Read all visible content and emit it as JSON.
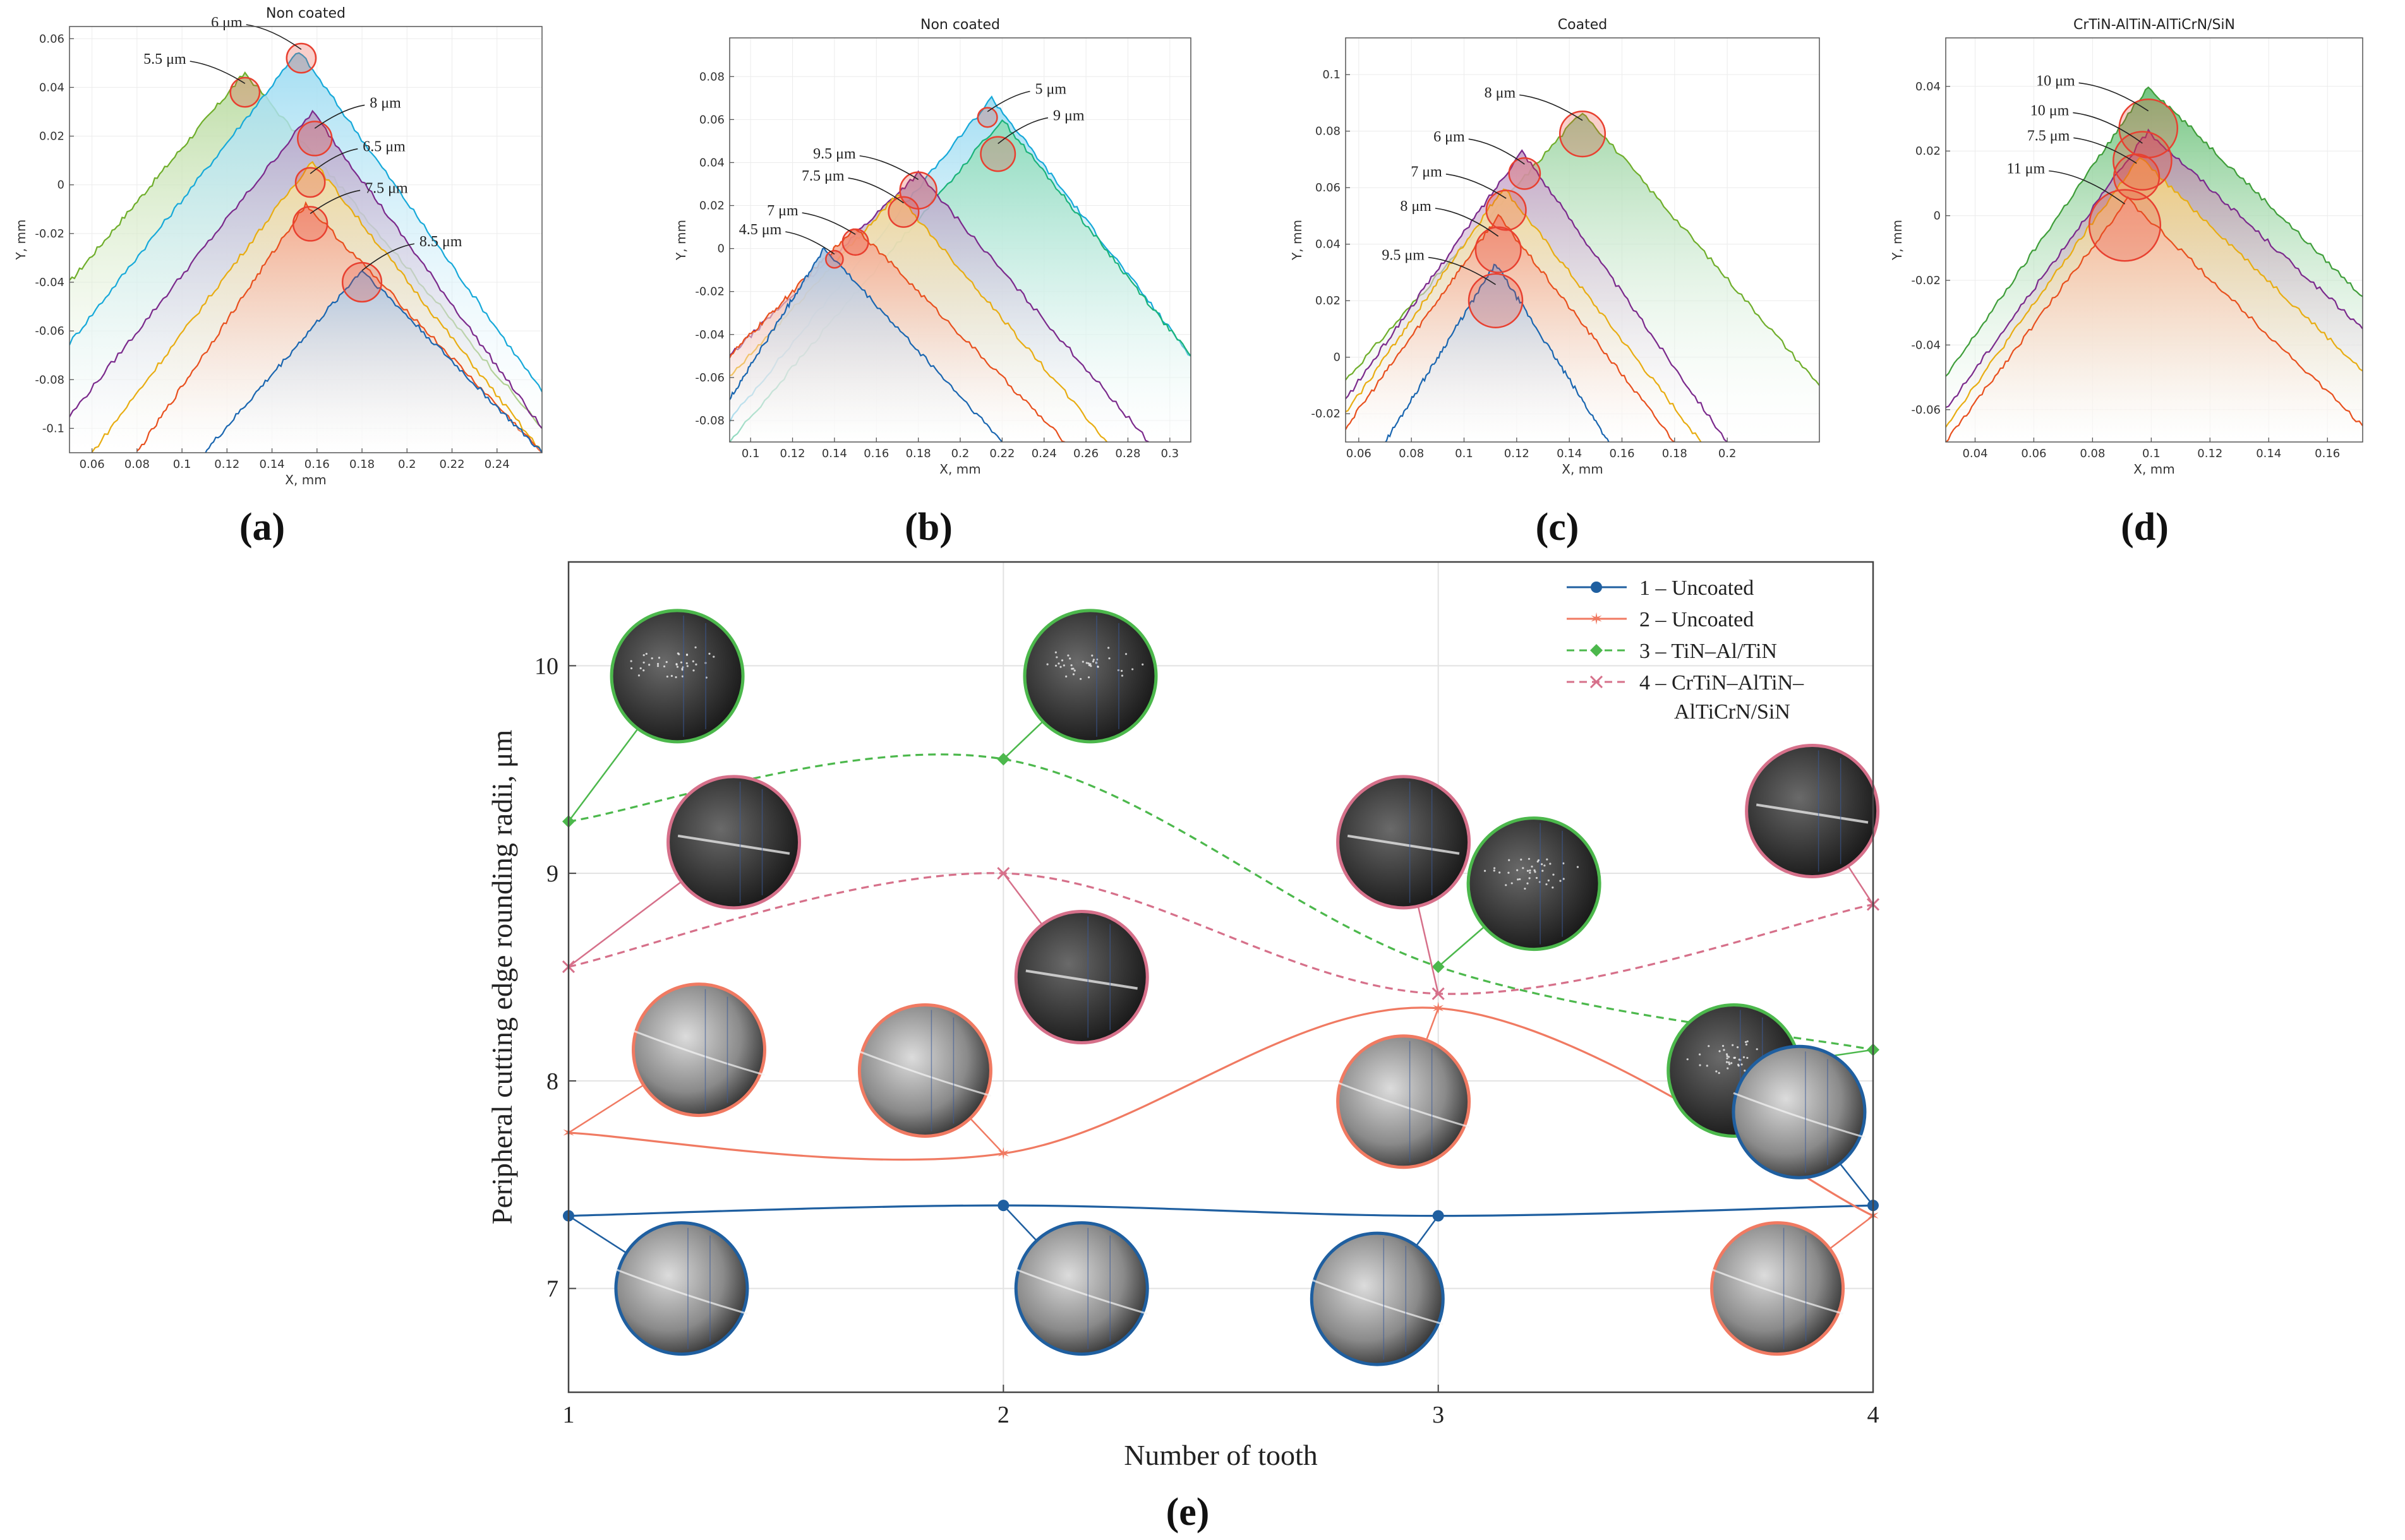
{
  "figure": {
    "labels": {
      "a": "(a)",
      "b": "(b)",
      "c": "(c)",
      "d": "(d)",
      "e": "(e)"
    }
  },
  "chart_data": [
    {
      "id": "a",
      "type": "area",
      "title": "Non coated",
      "xlabel": "X, mm",
      "ylabel": "Y, mm",
      "xlim": [
        0.05,
        0.26
      ],
      "ylim": [
        -0.11,
        0.065
      ],
      "xticks": [
        "0.06",
        "0.08",
        "0.1",
        "0.12",
        "0.14",
        "0.16",
        "0.18",
        "0.2",
        "0.22",
        "0.24"
      ],
      "xtick_values": [
        0.06,
        0.08,
        0.1,
        0.12,
        0.14,
        0.16,
        0.18,
        0.2,
        0.22,
        0.24
      ],
      "yticks": [
        "0.06",
        "0.04",
        "0.02",
        "0",
        "-0.02",
        "-0.04",
        "-0.06",
        "-0.08",
        "-0.1"
      ],
      "ytick_values": [
        0.06,
        0.04,
        0.02,
        0,
        -0.02,
        -0.04,
        -0.06,
        -0.08,
        -0.1
      ],
      "series": [
        {
          "color": "#6fae2b",
          "fill": "#b9dba0",
          "points": [
            [
              0.05,
              -0.04
            ],
            [
              0.128,
              0.046
            ],
            [
              0.26,
              -0.1
            ]
          ]
        },
        {
          "color": "#17a9d9",
          "fill": "#9edcf2",
          "points": [
            [
              0.05,
              -0.065
            ],
            [
              0.152,
              0.055
            ],
            [
              0.26,
              -0.085
            ]
          ]
        },
        {
          "color": "#7b2a8c",
          "fill": "#b7a4c9",
          "points": [
            [
              0.05,
              -0.095
            ],
            [
              0.158,
              0.03
            ],
            [
              0.26,
              -0.1
            ]
          ]
        },
        {
          "color": "#e8ad12",
          "fill": "#f2dc9a",
          "points": [
            [
              0.06,
              -0.11
            ],
            [
              0.158,
              0.01
            ],
            [
              0.26,
              -0.11
            ]
          ]
        },
        {
          "color": "#e8501e",
          "fill": "#f4a58a",
          "points": [
            [
              0.08,
              -0.11
            ],
            [
              0.155,
              -0.008
            ],
            [
              0.26,
              -0.11
            ]
          ]
        },
        {
          "color": "#1a66b0",
          "fill": "#a9c5e2",
          "points": [
            [
              0.11,
              -0.11
            ],
            [
              0.18,
              -0.035
            ],
            [
              0.26,
              -0.11
            ]
          ]
        }
      ],
      "circles": [
        {
          "text": "5.5 μm",
          "x": 0.128,
          "y": 0.038,
          "r": 0.006,
          "color": "#e84030"
        },
        {
          "text": "6 μm",
          "x": 0.153,
          "y": 0.052,
          "r": 0.006,
          "color": "#e84030"
        },
        {
          "text": "8 μm",
          "x": 0.159,
          "y": 0.019,
          "r": 0.007,
          "color": "#e84030"
        },
        {
          "text": "6.5 μm",
          "x": 0.157,
          "y": 0.001,
          "r": 0.006,
          "color": "#e84030"
        },
        {
          "text": "7.5 μm",
          "x": 0.157,
          "y": -0.016,
          "r": 0.007,
          "color": "#e84030"
        },
        {
          "text": "8.5 μm",
          "x": 0.18,
          "y": -0.04,
          "r": 0.008,
          "color": "#e84030"
        }
      ]
    },
    {
      "id": "b",
      "type": "area",
      "title": "Non coated",
      "xlabel": "X, mm",
      "ylabel": "Y, mm",
      "xlim": [
        0.09,
        0.31
      ],
      "ylim": [
        -0.09,
        0.098
      ],
      "xticks": [
        "0.1",
        "0.12",
        "0.14",
        "0.16",
        "0.18",
        "0.2",
        "0.22",
        "0.24",
        "0.26",
        "0.28",
        "0.3"
      ],
      "xtick_values": [
        0.1,
        0.12,
        0.14,
        0.16,
        0.18,
        0.2,
        0.22,
        0.24,
        0.26,
        0.28,
        0.3
      ],
      "yticks": [
        "0.08",
        "0.06",
        "0.04",
        "0.02",
        "0",
        "-0.02",
        "-0.04",
        "-0.06",
        "-0.08"
      ],
      "ytick_values": [
        0.08,
        0.06,
        0.04,
        0.02,
        0,
        -0.02,
        -0.04,
        -0.06,
        -0.08
      ],
      "series": [
        {
          "color": "#17a9d9",
          "fill": "#9edcf2",
          "points": [
            [
              0.09,
              -0.08
            ],
            [
              0.215,
              0.07
            ],
            [
              0.31,
              -0.05
            ]
          ]
        },
        {
          "color": "#1ab37a",
          "fill": "#8fdcb9",
          "points": [
            [
              0.09,
              -0.09
            ],
            [
              0.22,
              0.06
            ],
            [
              0.31,
              -0.05
            ]
          ]
        },
        {
          "color": "#7b2a8c",
          "fill": "#b7a4c9",
          "points": [
            [
              0.09,
              -0.05
            ],
            [
              0.18,
              0.035
            ],
            [
              0.29,
              -0.09
            ]
          ]
        },
        {
          "color": "#e8ad12",
          "fill": "#f2dc9a",
          "points": [
            [
              0.09,
              -0.06
            ],
            [
              0.17,
              0.025
            ],
            [
              0.27,
              -0.09
            ]
          ]
        },
        {
          "color": "#e8501e",
          "fill": "#f4a58a",
          "points": [
            [
              0.09,
              -0.05
            ],
            [
              0.15,
              0.01
            ],
            [
              0.25,
              -0.09
            ]
          ]
        },
        {
          "color": "#1a66b0",
          "fill": "#a9c5e2",
          "points": [
            [
              0.09,
              -0.07
            ],
            [
              0.135,
              0.0
            ],
            [
              0.22,
              -0.09
            ]
          ]
        }
      ],
      "circles": [
        {
          "text": "5 μm",
          "x": 0.213,
          "y": 0.061,
          "r": 0.0045,
          "color": "#e84030"
        },
        {
          "text": "9 μm",
          "x": 0.218,
          "y": 0.044,
          "r": 0.008,
          "color": "#e84030"
        },
        {
          "text": "9.5 μm",
          "x": 0.18,
          "y": 0.027,
          "r": 0.0085,
          "color": "#e84030"
        },
        {
          "text": "7.5 μm",
          "x": 0.173,
          "y": 0.017,
          "r": 0.007,
          "color": "#e84030"
        },
        {
          "text": "7 μm",
          "x": 0.15,
          "y": 0.003,
          "r": 0.006,
          "color": "#e84030"
        },
        {
          "text": "4.5 μm",
          "x": 0.14,
          "y": -0.005,
          "r": 0.004,
          "color": "#e84030"
        }
      ]
    },
    {
      "id": "c",
      "type": "area",
      "title": "Coated",
      "xlabel": "X, mm",
      "ylabel": "Y, mm",
      "xlim": [
        0.055,
        0.235
      ],
      "ylim": [
        -0.03,
        0.113
      ],
      "xticks": [
        "0.06",
        "0.08",
        "0.1",
        "0.12",
        "0.14",
        "0.16",
        "0.18",
        "0.2"
      ],
      "xtick_values": [
        0.06,
        0.08,
        0.1,
        0.12,
        0.14,
        0.16,
        0.18,
        0.2
      ],
      "yticks": [
        "0.1",
        "0.08",
        "0.06",
        "0.04",
        "0.02",
        "0",
        "-0.02"
      ],
      "ytick_values": [
        0.1,
        0.08,
        0.06,
        0.04,
        0.02,
        0,
        -0.02
      ],
      "series": [
        {
          "color": "#6fae2b",
          "fill": "#9fd6a6",
          "points": [
            [
              0.055,
              -0.008
            ],
            [
              0.145,
              0.087
            ],
            [
              0.235,
              -0.01
            ]
          ]
        },
        {
          "color": "#7b2a8c",
          "fill": "#c7a4c9",
          "points": [
            [
              0.055,
              -0.015
            ],
            [
              0.122,
              0.073
            ],
            [
              0.2,
              -0.03
            ]
          ]
        },
        {
          "color": "#e8ad12",
          "fill": "#f2dc9a",
          "points": [
            [
              0.055,
              -0.02
            ],
            [
              0.115,
              0.06
            ],
            [
              0.19,
              -0.03
            ]
          ]
        },
        {
          "color": "#e8501e",
          "fill": "#f4a58a",
          "points": [
            [
              0.055,
              -0.025
            ],
            [
              0.113,
              0.05
            ],
            [
              0.18,
              -0.03
            ]
          ]
        },
        {
          "color": "#1a66b0",
          "fill": "#a9c5e2",
          "points": [
            [
              0.07,
              -0.03
            ],
            [
              0.112,
              0.033
            ],
            [
              0.155,
              -0.03
            ]
          ]
        }
      ],
      "circles": [
        {
          "text": "8 μm",
          "x": 0.145,
          "y": 0.079,
          "r": 0.008,
          "color": "#e84030"
        },
        {
          "text": "6 μm",
          "x": 0.123,
          "y": 0.065,
          "r": 0.0055,
          "color": "#e84030"
        },
        {
          "text": "7 μm",
          "x": 0.116,
          "y": 0.052,
          "r": 0.007,
          "color": "#e84030"
        },
        {
          "text": "8 μm",
          "x": 0.113,
          "y": 0.038,
          "r": 0.008,
          "color": "#e84030"
        },
        {
          "text": "9.5 μm",
          "x": 0.112,
          "y": 0.02,
          "r": 0.0095,
          "color": "#e84030"
        }
      ]
    },
    {
      "id": "d",
      "type": "area",
      "title": "CrTiN-AlTiN-AlTiCrN/SiN",
      "xlabel": "X, mm",
      "ylabel": "Y, mm",
      "xlim": [
        0.03,
        0.172
      ],
      "ylim": [
        -0.07,
        0.055
      ],
      "xticks": [
        "0.04",
        "0.06",
        "0.08",
        "0.1",
        "0.12",
        "0.14",
        "0.16"
      ],
      "xtick_values": [
        0.04,
        0.06,
        0.08,
        0.1,
        0.12,
        0.14,
        0.16
      ],
      "yticks": [
        "0.04",
        "0.02",
        "0",
        "-0.02",
        "-0.04",
        "-0.06"
      ],
      "ytick_values": [
        0.04,
        0.02,
        0,
        -0.02,
        -0.04,
        -0.06
      ],
      "series": [
        {
          "color": "#3f9e3a",
          "fill": "#6cc27a",
          "points": [
            [
              0.03,
              -0.05
            ],
            [
              0.099,
              0.04
            ],
            [
              0.172,
              -0.025
            ]
          ]
        },
        {
          "color": "#7b2a8c",
          "fill": "#b48aa6",
          "points": [
            [
              0.03,
              -0.06
            ],
            [
              0.099,
              0.026
            ],
            [
              0.172,
              -0.035
            ]
          ]
        },
        {
          "color": "#e8ad12",
          "fill": "#f2cf7a",
          "points": [
            [
              0.03,
              -0.065
            ],
            [
              0.096,
              0.018
            ],
            [
              0.172,
              -0.048
            ]
          ]
        },
        {
          "color": "#e8501e",
          "fill": "#f6b395",
          "points": [
            [
              0.03,
              -0.07
            ],
            [
              0.092,
              0.005
            ],
            [
              0.172,
              -0.065
            ]
          ]
        }
      ],
      "circles": [
        {
          "text": "10 μm",
          "x": 0.099,
          "y": 0.027,
          "r": 0.009,
          "color": "#e84030"
        },
        {
          "text": "10 μm",
          "x": 0.097,
          "y": 0.017,
          "r": 0.009,
          "color": "#e84030"
        },
        {
          "text": "7.5 μm",
          "x": 0.095,
          "y": 0.012,
          "r": 0.007,
          "color": "#e84030"
        },
        {
          "text": "11 μm",
          "x": 0.091,
          "y": -0.003,
          "r": 0.011,
          "color": "#e84030"
        }
      ]
    },
    {
      "id": "e",
      "type": "line",
      "title": "",
      "xlabel": "Number of tooth",
      "ylabel": "Peripheral cutting edge rounding radii, μm",
      "xlim": [
        1,
        4
      ],
      "ylim": [
        6.5,
        10.5
      ],
      "categories": [
        "1",
        "2",
        "3",
        "4"
      ],
      "x": [
        1,
        2,
        3,
        4
      ],
      "yticks": [
        "7",
        "8",
        "9",
        "10"
      ],
      "ytick_values": [
        7,
        8,
        9,
        10
      ],
      "grid": true,
      "legend_position": "top-right",
      "series": [
        {
          "name": "1 – Uncoated",
          "values": [
            7.35,
            7.4,
            7.35,
            7.4
          ],
          "color": "#1f5fa0",
          "dash": "",
          "marker": "dot"
        },
        {
          "name": "2 – Uncoated",
          "values": [
            7.75,
            7.65,
            8.35,
            7.35
          ],
          "color": "#f07a62",
          "dash": "",
          "marker": "star"
        },
        {
          "name": "3 – TiN–Al/TiN",
          "values": [
            9.25,
            9.55,
            8.55,
            8.15
          ],
          "color": "#4cb84c",
          "dash": "12,8",
          "marker": "diamond"
        },
        {
          "name": "4 – CrTiN–AlTiN–AlTiCrN/SiN",
          "legend_lines": [
            "4 – CrTiN–AlTiN–",
            "AlTiCrN/SiN"
          ],
          "values": [
            8.55,
            9.0,
            8.42,
            8.85
          ],
          "color": "#d6708a",
          "dash": "12,8",
          "marker": "cross"
        }
      ],
      "insets": [
        {
          "x": 1.25,
          "y": 9.95,
          "series": 3,
          "style": "sparkle"
        },
        {
          "x": 2.2,
          "y": 9.95,
          "series": 3,
          "style": "sparkle"
        },
        {
          "x": 3.22,
          "y": 8.95,
          "series": 3,
          "style": "sparkle"
        },
        {
          "x": 3.68,
          "y": 8.05,
          "series": 3,
          "style": "sparkle"
        },
        {
          "x": 1.38,
          "y": 9.15,
          "series": 4,
          "style": "edge"
        },
        {
          "x": 2.18,
          "y": 8.5,
          "series": 4,
          "style": "edge"
        },
        {
          "x": 2.92,
          "y": 9.15,
          "series": 4,
          "style": "edge"
        },
        {
          "x": 3.86,
          "y": 9.3,
          "series": 4,
          "style": "edge"
        },
        {
          "x": 1.3,
          "y": 8.15,
          "series": 2,
          "style": "bright"
        },
        {
          "x": 1.82,
          "y": 8.05,
          "series": 2,
          "style": "bright"
        },
        {
          "x": 2.92,
          "y": 7.9,
          "series": 2,
          "style": "bright"
        },
        {
          "x": 3.78,
          "y": 7.0,
          "series": 2,
          "style": "bright"
        },
        {
          "x": 1.26,
          "y": 7.0,
          "series": 1,
          "style": "bright"
        },
        {
          "x": 2.18,
          "y": 7.0,
          "series": 1,
          "style": "bright"
        },
        {
          "x": 2.86,
          "y": 6.95,
          "series": 1,
          "style": "bright"
        },
        {
          "x": 3.83,
          "y": 7.85,
          "series": 1,
          "style": "bright"
        }
      ]
    }
  ]
}
